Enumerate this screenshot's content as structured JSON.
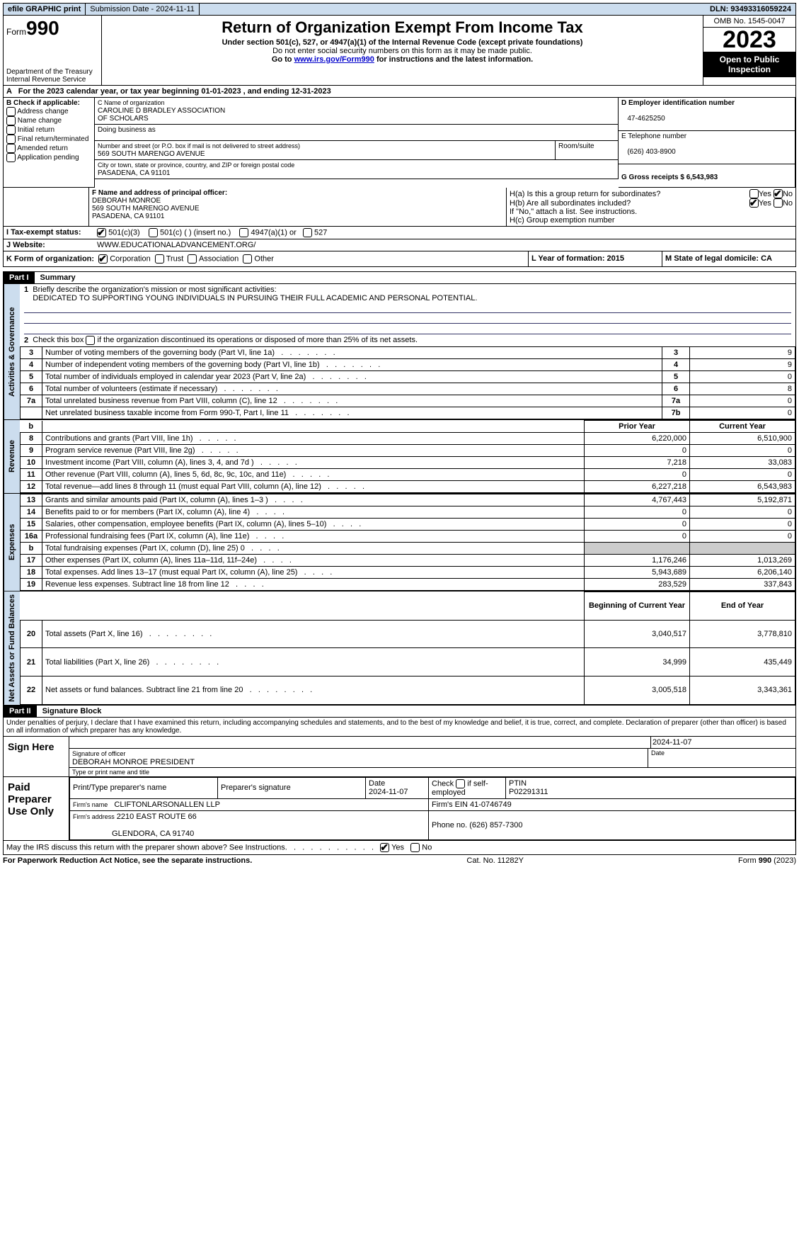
{
  "topbar": {
    "efile": "efile GRAPHIC print",
    "submission": "Submission Date - 2024-11-11",
    "dln": "DLN: 93493316059224"
  },
  "header": {
    "form_label": "Form",
    "form_num": "990",
    "dept1": "Department of the Treasury",
    "dept2": "Internal Revenue Service",
    "title": "Return of Organization Exempt From Income Tax",
    "sub1": "Under section 501(c), 527, or 4947(a)(1) of the Internal Revenue Code (except private foundations)",
    "sub2": "Do not enter social security numbers on this form as it may be made public.",
    "sub3a": "Go to ",
    "sub3_link": "www.irs.gov/Form990",
    "sub3b": " for instructions and the latest information.",
    "omb": "OMB No. 1545-0047",
    "year": "2023",
    "open": "Open to Public Inspection"
  },
  "a": {
    "text": "For the 2023 calendar year, or tax year beginning 01-01-2023    , and ending 12-31-2023"
  },
  "b": {
    "label": "B Check if applicable:",
    "opts": [
      "Address change",
      "Name change",
      "Initial return",
      "Final return/terminated",
      "Amended return",
      "Application pending"
    ]
  },
  "c": {
    "name_label": "C Name of organization",
    "name1": "CAROLINE D BRADLEY ASSOCIATION",
    "name2": "OF SCHOLARS",
    "dba_label": "Doing business as",
    "addr_label": "Number and street (or P.O. box if mail is not delivered to street address)",
    "room_label": "Room/suite",
    "addr": "569 SOUTH MARENGO AVENUE",
    "city_label": "City or town, state or province, country, and ZIP or foreign postal code",
    "city": "PASADENA, CA  91101"
  },
  "d": {
    "label": "D Employer identification number",
    "val": "47-4625250"
  },
  "e": {
    "label": "E Telephone number",
    "val": "(626) 403-8900"
  },
  "g": {
    "label": "G Gross receipts $ 6,543,983"
  },
  "f": {
    "label": "F  Name and address of principal officer:",
    "l1": "DEBORAH MONROE",
    "l2": "569 SOUTH MARENGO AVENUE",
    "l3": "PASADENA, CA  91101"
  },
  "h": {
    "a_label": "H(a)  Is this a group return for subordinates?",
    "b_label": "H(b)  Are all subordinates included?",
    "note": "If \"No,\" attach a list. See instructions.",
    "c_label": "H(c)  Group exemption number"
  },
  "i": {
    "label": "I    Tax-exempt status:",
    "o1": "501(c)(3)",
    "o2": "501(c) (  ) (insert no.)",
    "o3": "4947(a)(1) or",
    "o4": "527"
  },
  "j": {
    "label": "J   Website:",
    "val": "WWW.EDUCATIONALADVANCEMENT.ORG/"
  },
  "k": {
    "label": "K Form of organization:",
    "o": [
      "Corporation",
      "Trust",
      "Association",
      "Other"
    ]
  },
  "l": {
    "label": "L Year of formation: 2015"
  },
  "m": {
    "label": "M State of legal domicile: CA"
  },
  "part1": {
    "header": "Part I",
    "title": "Summary",
    "q1_label": "Briefly describe the organization's mission or most significant activities:",
    "q1_val": "DEDICATED TO SUPPORTING YOUNG INDIVIDUALS IN PURSUING THEIR FULL ACADEMIC AND PERSONAL POTENTIAL.",
    "q2": "Check this box      if the organization discontinued its operations or disposed of more than 25% of its net assets.",
    "rows_gov": [
      {
        "n": "3",
        "t": "Number of voting members of the governing body (Part VI, line 1a)",
        "c": "3",
        "v": "9"
      },
      {
        "n": "4",
        "t": "Number of independent voting members of the governing body (Part VI, line 1b)",
        "c": "4",
        "v": "9"
      },
      {
        "n": "5",
        "t": "Total number of individuals employed in calendar year 2023 (Part V, line 2a)",
        "c": "5",
        "v": "0"
      },
      {
        "n": "6",
        "t": "Total number of volunteers (estimate if necessary)",
        "c": "6",
        "v": "8"
      },
      {
        "n": "7a",
        "t": "Total unrelated business revenue from Part VIII, column (C), line 12",
        "c": "7a",
        "v": "0"
      },
      {
        "n": "",
        "t": "Net unrelated business taxable income from Form 990-T, Part I, line 11",
        "c": "7b",
        "v": "0"
      }
    ],
    "col_prior": "Prior Year",
    "col_curr": "Current Year",
    "rows_rev": [
      {
        "n": "8",
        "t": "Contributions and grants (Part VIII, line 1h)",
        "p": "6,220,000",
        "c": "6,510,900"
      },
      {
        "n": "9",
        "t": "Program service revenue (Part VIII, line 2g)",
        "p": "0",
        "c": "0"
      },
      {
        "n": "10",
        "t": "Investment income (Part VIII, column (A), lines 3, 4, and 7d )",
        "p": "7,218",
        "c": "33,083"
      },
      {
        "n": "11",
        "t": "Other revenue (Part VIII, column (A), lines 5, 6d, 8c, 9c, 10c, and 11e)",
        "p": "0",
        "c": "0"
      },
      {
        "n": "12",
        "t": "Total revenue—add lines 8 through 11 (must equal Part VIII, column (A), line 12)",
        "p": "6,227,218",
        "c": "6,543,983"
      }
    ],
    "rows_exp": [
      {
        "n": "13",
        "t": "Grants and similar amounts paid (Part IX, column (A), lines 1–3 )",
        "p": "4,767,443",
        "c": "5,192,871"
      },
      {
        "n": "14",
        "t": "Benefits paid to or for members (Part IX, column (A), line 4)",
        "p": "0",
        "c": "0"
      },
      {
        "n": "15",
        "t": "Salaries, other compensation, employee benefits (Part IX, column (A), lines 5–10)",
        "p": "0",
        "c": "0"
      },
      {
        "n": "16a",
        "t": "Professional fundraising fees (Part IX, column (A), line 11e)",
        "p": "0",
        "c": "0"
      },
      {
        "n": "b",
        "t": "Total fundraising expenses (Part IX, column (D), line 25) 0",
        "p": "SHADE",
        "c": "SHADE"
      },
      {
        "n": "17",
        "t": "Other expenses (Part IX, column (A), lines 11a–11d, 11f–24e)",
        "p": "1,176,246",
        "c": "1,013,269"
      },
      {
        "n": "18",
        "t": "Total expenses. Add lines 13–17 (must equal Part IX, column (A), line 25)",
        "p": "5,943,689",
        "c": "6,206,140"
      },
      {
        "n": "19",
        "t": "Revenue less expenses. Subtract line 18 from line 12",
        "p": "283,529",
        "c": "337,843"
      }
    ],
    "col_begin": "Beginning of Current Year",
    "col_end": "End of Year",
    "rows_net": [
      {
        "n": "20",
        "t": "Total assets (Part X, line 16)",
        "p": "3,040,517",
        "c": "3,778,810"
      },
      {
        "n": "21",
        "t": "Total liabilities (Part X, line 26)",
        "p": "34,999",
        "c": "435,449"
      },
      {
        "n": "22",
        "t": "Net assets or fund balances. Subtract line 21 from line 20",
        "p": "3,005,518",
        "c": "3,343,361"
      }
    ],
    "vtab_gov": "Activities & Governance",
    "vtab_rev": "Revenue",
    "vtab_exp": "Expenses",
    "vtab_net": "Net Assets or Fund Balances"
  },
  "part2": {
    "header": "Part II",
    "title": "Signature Block",
    "decl": "Under penalties of perjury, I declare that I have examined this return, including accompanying schedules and statements, and to the best of my knowledge and belief, it is true, correct, and complete. Declaration of preparer (other than officer) is based on all information of which preparer has any knowledge.",
    "sign_here": "Sign Here",
    "date1": "2024-11-07",
    "sig_label": "Signature of officer",
    "name_label": "Type or print name and title",
    "officer": "DEBORAH MONROE  PRESIDENT",
    "date_label": "Date",
    "paid": "Paid Preparer Use Only",
    "prep_name_label": "Print/Type preparer's name",
    "prep_sig_label": "Preparer's signature",
    "prep_date": "2024-11-07",
    "self_emp": "Check       if self-employed",
    "ptin_label": "PTIN",
    "ptin": "P02291311",
    "firm_name_label": "Firm's name",
    "firm_name": "CLIFTONLARSONALLEN LLP",
    "firm_ein": "Firm's EIN 41-0746749",
    "firm_addr_label": "Firm's address",
    "firm_addr1": "2210 EAST ROUTE 66",
    "firm_addr2": "GLENDORA, CA  91740",
    "firm_phone": "Phone no. (626) 857-7300",
    "discuss": "May the IRS discuss this return with the preparer shown above? See Instructions.",
    "yes": "Yes",
    "no": "No"
  },
  "footer": {
    "l": "For Paperwork Reduction Act Notice, see the separate instructions.",
    "m": "Cat. No. 11282Y",
    "r": "Form 990 (2023)"
  }
}
